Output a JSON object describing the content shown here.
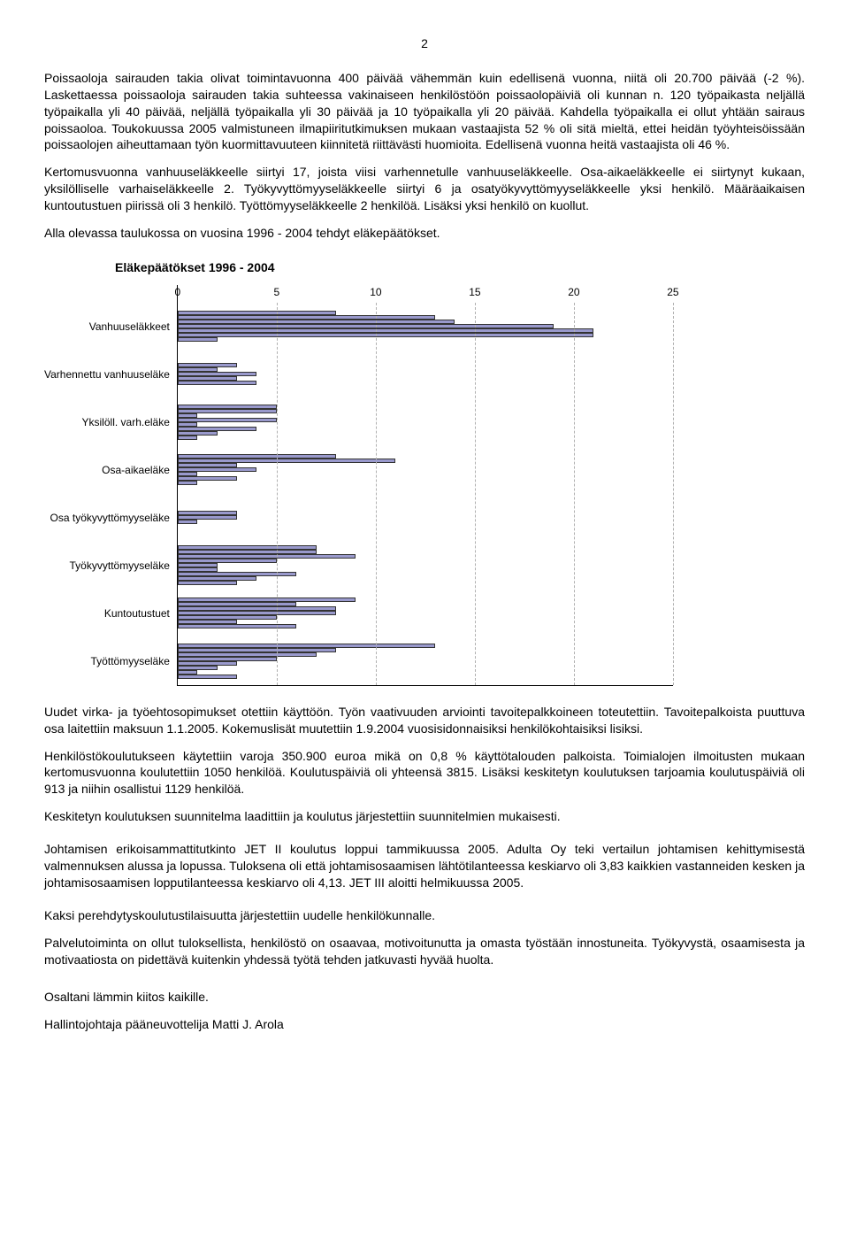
{
  "page_number": "2",
  "paragraphs": {
    "p1": "Poissaoloja sairauden takia olivat toimintavuonna 400 päivää vähemmän kuin edellisenä vuonna, niitä oli 20.700 päivää (-2 %). Laskettaessa poissaoloja sairauden takia suhteessa vakinaiseen henkilöstöön poissaolopäiviä oli kunnan n. 120 työpaikasta neljällä työpaikalla yli 40 päivää, neljällä työpaikalla yli 30 päivää ja 10 työpaikalla yli 20 päivää. Kahdella työpaikalla ei ollut yhtään sairaus poissaoloa. Toukokuussa 2005 valmistuneen ilmapiiritutkimuksen mukaan vastaajista 52 % oli sitä mieltä, ettei heidän työyhteisöissään poissaolojen aiheuttamaan työn kuormittavuuteen kiinnitetä riittävästi huomioita. Edellisenä vuonna heitä vastaajista oli 46 %.",
    "p2": "Kertomusvuonna vanhuuseläkkeelle siirtyi 17, joista viisi varhennetulle vanhuuseläkkeelle. Osa-aikaeläkkeelle ei siirtynyt kukaan, yksilölliselle varhaiseläkkeelle 2. Työkyvyttömyyseläkkeelle siirtyi 6 ja osatyökyvyttömyyseläkkeelle yksi henkilö. Määräaikaisen kuntoutustuen piirissä oli 3 henkilö. Työttömyyseläkkeelle 2 henkilöä. Lisäksi yksi henkilö on kuollut.",
    "p3": "Alla olevassa taulukossa on vuosina 1996 - 2004 tehdyt eläkepäätökset.",
    "p4": "Uudet virka- ja työehtosopimukset otettiin käyttöön. Työn vaativuuden arviointi tavoitepalkkoineen toteutettiin. Tavoitepalkoista puuttuva osa laitettiin maksuun 1.1.2005. Kokemuslisät muutettiin 1.9.2004 vuosisidonnaisiksi henkilökohtaisiksi lisiksi.",
    "p5": "Henkilöstökoulutukseen käytettiin varoja 350.900 euroa mikä on 0,8 % käyttötalouden palkoista. Toimialojen ilmoitusten mukaan kertomusvuonna koulutettiin 1050 henkilöä. Koulutuspäiviä oli yhteensä 3815. Lisäksi keskitetyn koulutuksen tarjoamia koulutuspäiviä oli 913 ja niihin osallistui 1129 henkilöä.",
    "p6": "Keskitetyn koulutuksen suunnitelma laadittiin ja koulutus järjestettiin suunnitelmien mukaisesti.",
    "p7": "Johtamisen erikoisammattitutkinto JET II koulutus loppui tammikuussa 2005. Adulta Oy teki vertailun johtamisen kehittymisestä valmennuksen alussa ja lopussa. Tuloksena oli että johtamisosaamisen lähtötilanteessa keskiarvo oli 3,83 kaikkien vastanneiden kesken ja johtamisosaamisen lopputilanteessa keskiarvo oli 4,13. JET III aloitti helmikuussa 2005.",
    "p8": "Kaksi perehdytyskoulutustilaisuutta järjestettiin uudelle henkilökunnalle.",
    "p9": "Palvelutoiminta on ollut tuloksellista, henkilöstö on osaavaa, motivoitunutta ja omasta työstään innostuneita. Työkyvystä, osaamisesta ja motivaatiosta on pidettävä kuitenkin yhdessä työtä tehden jatkuvasti hyvää huolta.",
    "p10": "Osaltani lämmin kiitos kaikille.",
    "p11": "Hallintojohtaja pääneuvottelija Matti J. Arola"
  },
  "chart": {
    "title": "Eläkepäätökset 1996 - 2004",
    "type": "bar",
    "xmax": 25,
    "xticks": [
      0,
      5,
      10,
      15,
      20,
      25
    ],
    "bar_fill": "#9999cc",
    "bar_border": "#333333",
    "grid_color": "#b0b0b0",
    "categories": [
      {
        "label": "Vanhuuseläkkeet",
        "values": [
          8,
          13,
          14,
          19,
          21,
          21,
          2
        ]
      },
      {
        "label": "Varhennettu vanhuuseläke",
        "values": [
          3,
          2,
          4,
          3,
          4
        ]
      },
      {
        "label": "Yksilöll. varh.eläke",
        "values": [
          5,
          5,
          1,
          5,
          1,
          4,
          2,
          1
        ]
      },
      {
        "label": "Osa-aikaeläke",
        "values": [
          8,
          11,
          3,
          4,
          1,
          3,
          1
        ]
      },
      {
        "label": "Osa työkyvyttömyyseläke",
        "values": [
          3,
          3,
          1
        ]
      },
      {
        "label": "Työkyvyttömyyseläke",
        "values": [
          7,
          7,
          9,
          5,
          2,
          2,
          6,
          4,
          3
        ]
      },
      {
        "label": "Kuntoutustuet",
        "values": [
          9,
          6,
          8,
          8,
          5,
          3,
          6
        ]
      },
      {
        "label": "Työttömyyseläke",
        "values": [
          13,
          8,
          7,
          5,
          3,
          2,
          1,
          3
        ]
      }
    ]
  }
}
